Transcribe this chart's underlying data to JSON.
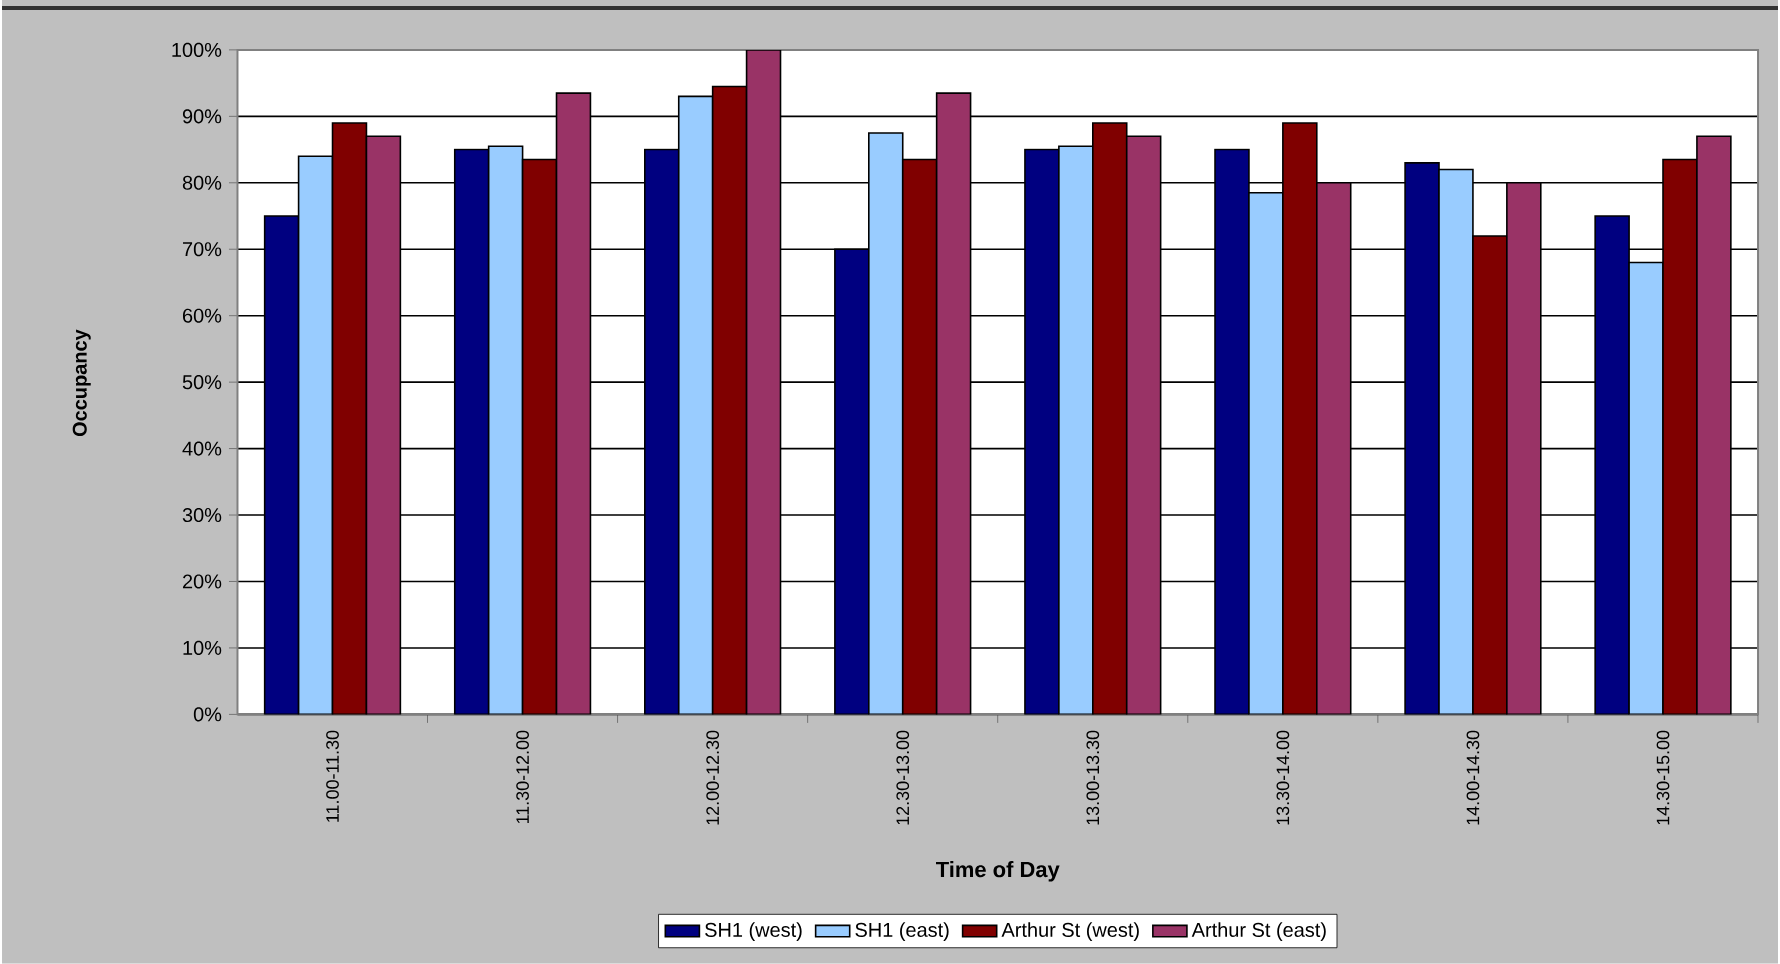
{
  "chart_data": {
    "type": "bar",
    "xlabel": "Time of Day",
    "ylabel": "Occupancy",
    "categories": [
      "11.00-11.30",
      "11.30-12.00",
      "12.00-12.30",
      "12.30-13.00",
      "13.00-13.30",
      "13.30-14.00",
      "14.00-14.30",
      "14.30-15.00"
    ],
    "series": [
      {
        "name": "SH1 (west)",
        "color": "#000080",
        "values": [
          75,
          85,
          85,
          70,
          85,
          85,
          83,
          75
        ]
      },
      {
        "name": "SH1 (east)",
        "color": "#99ccff",
        "values": [
          84,
          85.5,
          93,
          87.5,
          85.5,
          78.5,
          82,
          68
        ]
      },
      {
        "name": "Arthur St (west)",
        "color": "#800000",
        "values": [
          89,
          83.5,
          94.5,
          83.5,
          89,
          89,
          72,
          83.5
        ]
      },
      {
        "name": "Arthur St (east)",
        "color": "#993366",
        "values": [
          87,
          93.5,
          100,
          93.5,
          87,
          80,
          80,
          87
        ]
      }
    ],
    "ylim": [
      0,
      100
    ],
    "yticks": [
      {
        "value": 0,
        "label": "0%"
      },
      {
        "value": 10,
        "label": "10%"
      },
      {
        "value": 20,
        "label": "20%"
      },
      {
        "value": 30,
        "label": "30%"
      },
      {
        "value": 40,
        "label": "40%"
      },
      {
        "value": 50,
        "label": "50%"
      },
      {
        "value": 60,
        "label": "60%"
      },
      {
        "value": 70,
        "label": "70%"
      },
      {
        "value": 80,
        "label": "80%"
      },
      {
        "value": 90,
        "label": "90%"
      },
      {
        "value": 100,
        "label": "100%"
      }
    ],
    "grid": "y",
    "legend": "bottom"
  }
}
